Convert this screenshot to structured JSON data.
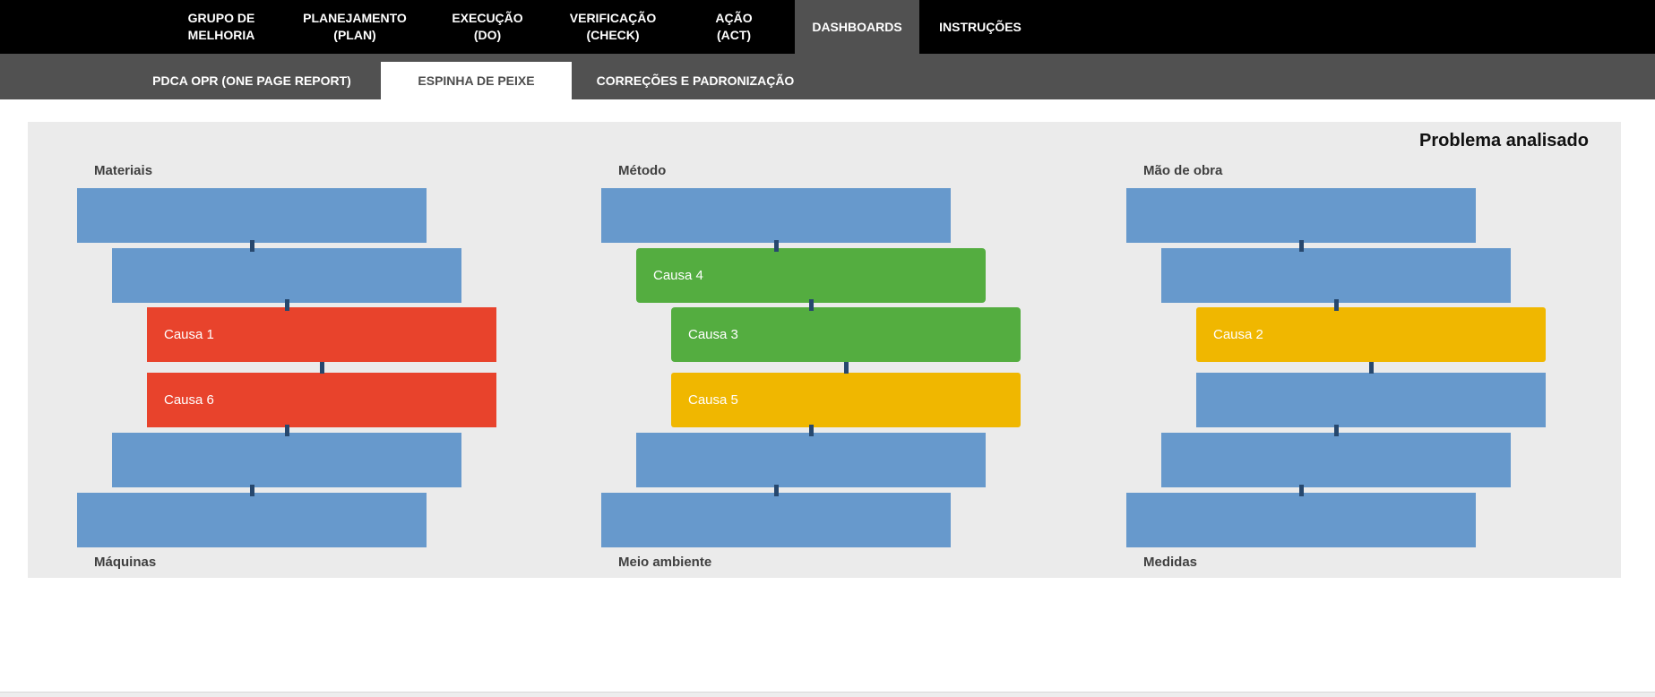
{
  "nav": {
    "items": [
      {
        "line1": "GRUPO DE",
        "line2": "MELHORIA"
      },
      {
        "line1": "PLANEJAMENTO",
        "line2": "(PLAN)"
      },
      {
        "line1": "EXECUÇÃO",
        "line2": "(DO)"
      },
      {
        "line1": "VERIFICAÇÃO",
        "line2": "(CHECK)"
      },
      {
        "line1": "AÇÃO",
        "line2": "(ACT)"
      },
      {
        "label": "DASHBOARDS",
        "active": true
      },
      {
        "label": "INSTRUÇÕES",
        "active": false
      }
    ]
  },
  "subnav": {
    "items": [
      {
        "label": "PDCA OPR (ONE PAGE REPORT)",
        "active": false
      },
      {
        "label": "ESPINHA DE PEIXE",
        "active": true
      },
      {
        "label": "CORREÇÕES E PADRONIZAÇÃO",
        "active": false
      }
    ]
  },
  "panel": {
    "title": "Problema analisado"
  },
  "fishbone": {
    "columns": [
      {
        "top_label": "Materiais",
        "bottom_label": "Máquinas",
        "bars": [
          {
            "color": "blue",
            "label": ""
          },
          {
            "color": "blue",
            "label": ""
          },
          {
            "color": "red",
            "label": "Causa 1"
          },
          {
            "color": "red",
            "label": "Causa 6"
          },
          {
            "color": "blue",
            "label": ""
          },
          {
            "color": "blue",
            "label": ""
          }
        ]
      },
      {
        "top_label": "Método",
        "bottom_label": "Meio ambiente",
        "bars": [
          {
            "color": "blue",
            "label": ""
          },
          {
            "color": "green",
            "label": "Causa 4"
          },
          {
            "color": "green",
            "label": "Causa 3"
          },
          {
            "color": "yellow",
            "label": "Causa 5"
          },
          {
            "color": "blue",
            "label": ""
          },
          {
            "color": "blue",
            "label": ""
          }
        ]
      },
      {
        "top_label": "Mão de obra",
        "bottom_label": "Medidas",
        "bars": [
          {
            "color": "blue",
            "label": ""
          },
          {
            "color": "blue",
            "label": ""
          },
          {
            "color": "yellow",
            "label": "Causa 2"
          },
          {
            "color": "blue",
            "label": ""
          },
          {
            "color": "blue",
            "label": ""
          },
          {
            "color": "blue",
            "label": ""
          }
        ]
      }
    ]
  },
  "colors": {
    "blue": "#6799CC",
    "red": "#E8432C",
    "green": "#54AD40",
    "yellow": "#F0B700",
    "tick": "#27486E",
    "panel_bg": "#EBEBEB",
    "nav_bg": "#000000",
    "nav_active_bg": "#515151",
    "subnav_bg": "#515151",
    "subnav_active_bg": "#FFFFFF",
    "subnav_active_text": "#4D4D4D"
  }
}
